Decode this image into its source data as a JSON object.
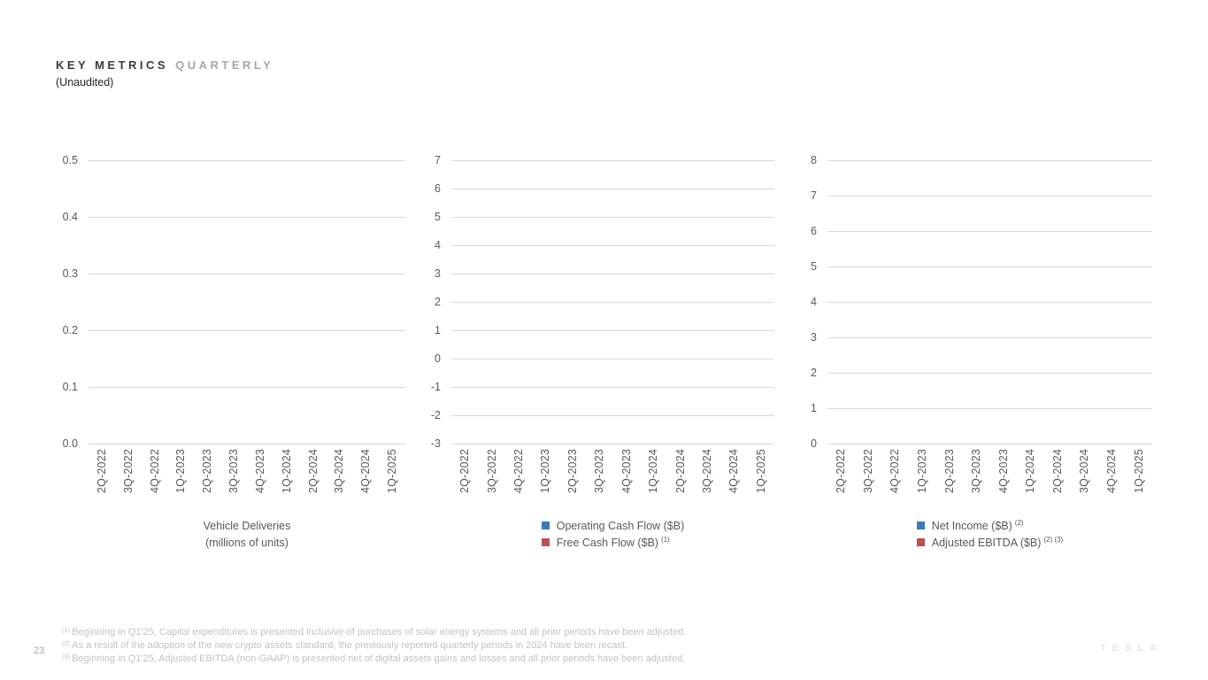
{
  "header": {
    "title_primary": "KEY METRICS",
    "title_secondary": "QUARTERLY",
    "subtitle": "(Unaudited)"
  },
  "colors": {
    "series_blue": "#4079B9",
    "series_red": "#C0504D",
    "gridline": "#d9d9d9",
    "axis_text": "#595959"
  },
  "quarters": [
    "2Q-2022",
    "3Q-2022",
    "4Q-2022",
    "1Q-2023",
    "2Q-2023",
    "3Q-2023",
    "4Q-2023",
    "1Q-2024",
    "2Q-2024",
    "3Q-2024",
    "4Q-2024",
    "1Q-2025"
  ],
  "charts": [
    {
      "id": "vehicle-deliveries",
      "y_ticks": [
        "0.5",
        "0.4",
        "0.3",
        "0.2",
        "0.1",
        "0.0"
      ],
      "axis_title_lines": [
        "Vehicle Deliveries",
        "(millions of units)"
      ],
      "legend": []
    },
    {
      "id": "cash-flow",
      "y_ticks": [
        "7",
        "6",
        "5",
        "4",
        "3",
        "2",
        "1",
        "0",
        "-1",
        "-2",
        "-3"
      ],
      "legend": [
        {
          "label": "Operating Cash Flow ($B)",
          "sup": "",
          "color": "#4079B9"
        },
        {
          "label": "Free Cash Flow ($B)",
          "sup": "(1)",
          "color": "#C0504D"
        }
      ]
    },
    {
      "id": "net-income-ebitda",
      "y_ticks": [
        "8",
        "7",
        "6",
        "5",
        "4",
        "3",
        "2",
        "1",
        "0"
      ],
      "legend": [
        {
          "label": "Net Income ($B)",
          "sup": "(2)",
          "color": "#4079B9"
        },
        {
          "label": "Adjusted EBITDA ($B)",
          "sup": "(2) (3)",
          "color": "#C0504D"
        }
      ]
    }
  ],
  "chart_data": [
    {
      "type": "bar",
      "title": "Vehicle Deliveries (millions of units)",
      "categories": [
        "2Q-2022",
        "3Q-2022",
        "4Q-2022",
        "1Q-2023",
        "2Q-2023",
        "3Q-2023",
        "4Q-2023",
        "1Q-2024",
        "2Q-2024",
        "3Q-2024",
        "4Q-2024",
        "1Q-2025"
      ],
      "series": [
        {
          "name": "Vehicle Deliveries (millions of units)",
          "values": []
        }
      ],
      "xlabel": "",
      "ylabel": "",
      "ylim": [
        0.0,
        0.5
      ],
      "y_tick_step": 0.1,
      "grid": true,
      "legend_position": "bottom",
      "note": "Plot area is empty in the screenshot — gridlines only, no bars rendered"
    },
    {
      "type": "bar",
      "title": "",
      "categories": [
        "2Q-2022",
        "3Q-2022",
        "4Q-2022",
        "1Q-2023",
        "2Q-2023",
        "3Q-2023",
        "4Q-2023",
        "1Q-2024",
        "2Q-2024",
        "3Q-2024",
        "4Q-2024",
        "1Q-2025"
      ],
      "series": [
        {
          "name": "Operating Cash Flow ($B)",
          "color": "#4079B9",
          "values": []
        },
        {
          "name": "Free Cash Flow ($B) (1)",
          "color": "#C0504D",
          "values": []
        }
      ],
      "xlabel": "",
      "ylabel": "",
      "ylim": [
        -3,
        7
      ],
      "y_tick_step": 1,
      "grid": true,
      "legend_position": "bottom",
      "note": "Plot area is empty in the screenshot — gridlines only, no bars rendered"
    },
    {
      "type": "bar",
      "title": "",
      "categories": [
        "2Q-2022",
        "3Q-2022",
        "4Q-2022",
        "1Q-2023",
        "2Q-2023",
        "3Q-2023",
        "4Q-2023",
        "1Q-2024",
        "2Q-2024",
        "3Q-2024",
        "4Q-2024",
        "1Q-2025"
      ],
      "series": [
        {
          "name": "Net Income ($B) (2)",
          "color": "#4079B9",
          "values": []
        },
        {
          "name": "Adjusted EBITDA ($B) (2) (3)",
          "color": "#C0504D",
          "values": []
        }
      ],
      "xlabel": "",
      "ylabel": "",
      "ylim": [
        0,
        8
      ],
      "y_tick_step": 1,
      "grid": true,
      "legend_position": "bottom",
      "note": "Plot area is empty in the screenshot — gridlines only, no bars rendered"
    }
  ],
  "footnotes": [
    {
      "sup": "(1)",
      "text": "Beginning in Q1'25, Capital expenditures is presented inclusive of purchases of solar energy systems and all prior periods have been adjusted."
    },
    {
      "sup": "(2)",
      "text": "As a result of the adoption of the new crypto assets standard, the previously reported quarterly periods in 2024 have been recast."
    },
    {
      "sup": "(3)",
      "text": "Beginning in Q1'25, Adjusted EBITDA (non-GAAP) is presented net of digital assets gains and losses and all prior periods have been adjusted."
    }
  ],
  "footer": {
    "page_number": "23",
    "logo_text": "TESLA"
  }
}
